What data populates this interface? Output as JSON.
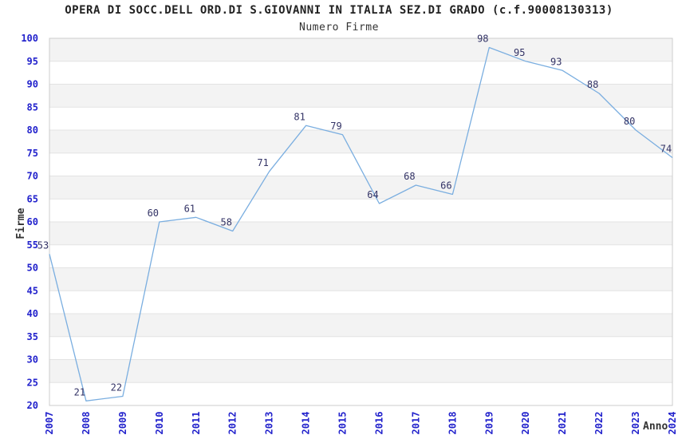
{
  "title": "OPERA DI SOCC.DELL ORD.DI S.GIOVANNI IN ITALIA SEZ.DI GRADO (c.f.90008130313)",
  "subtitle": "Numero Firme",
  "chart_data": {
    "type": "line",
    "title": "OPERA DI SOCC.DELL ORD.DI S.GIOVANNI IN ITALIA SEZ.DI GRADO (c.f.90008130313)",
    "subtitle": "Numero Firme",
    "xlabel": "Anno",
    "ylabel": "Firme",
    "categories": [
      "2007",
      "2008",
      "2009",
      "2010",
      "2011",
      "2012",
      "2013",
      "2014",
      "2015",
      "2016",
      "2017",
      "2018",
      "2019",
      "2020",
      "2021",
      "2022",
      "2023",
      "2024"
    ],
    "values": [
      53,
      21,
      22,
      60,
      61,
      58,
      71,
      81,
      79,
      64,
      68,
      66,
      98,
      95,
      93,
      88,
      80,
      74
    ],
    "ylim": [
      20,
      100
    ],
    "ytick_step": 5,
    "grid": true,
    "legend": false,
    "band_fill": true,
    "colors": {
      "line": "#7aaee0",
      "tick_label": "#2222cc",
      "data_label": "#333366",
      "band": "#f3f3f3",
      "grid": "#e3e3e3",
      "border": "#cccccc",
      "title_text": "#222222"
    }
  }
}
